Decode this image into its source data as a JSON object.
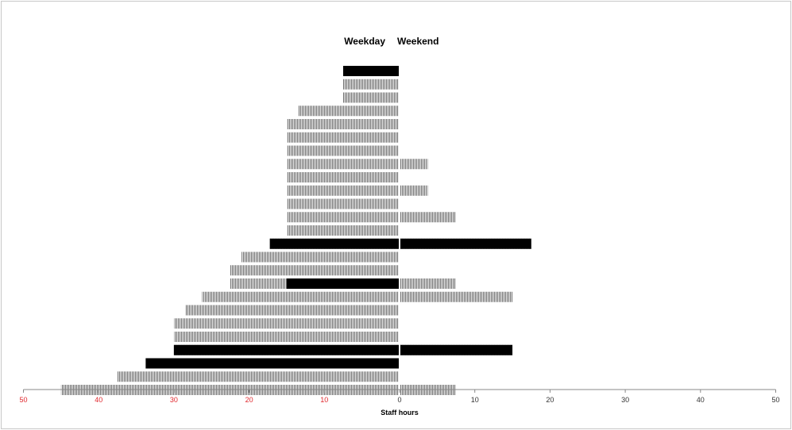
{
  "chart_data": {
    "type": "bar",
    "orientation": "horizontal",
    "layout": "back-to-back",
    "left_header": "Weekday",
    "right_header": "Weekend",
    "xlabel": "Staff hours",
    "xlim": [
      -50,
      50
    ],
    "tick_values": [
      -50,
      -40,
      -30,
      -20,
      -10,
      0,
      10,
      20,
      30,
      40,
      50
    ],
    "tick_labels": [
      "50",
      "40",
      "30",
      "20",
      "10",
      "0",
      "10",
      "20",
      "30",
      "40",
      "50"
    ],
    "tick_colors": {
      "left": "#e0282e",
      "right": "#333333"
    },
    "colors": {
      "hatched": "#7a7a7a",
      "solid": "#000000",
      "axis": "#888888"
    },
    "grid": false,
    "legend": "none",
    "rows": [
      {
        "weekday": 7.5,
        "weekend": 0,
        "weekday_solid": 7.5,
        "weekend_solid": 0
      },
      {
        "weekday": 7.5,
        "weekend": 0,
        "weekday_solid": 0,
        "weekend_solid": 0
      },
      {
        "weekday": 7.5,
        "weekend": 0,
        "weekday_solid": 0,
        "weekend_solid": 0
      },
      {
        "weekday": 13.5,
        "weekend": 0,
        "weekday_solid": 0,
        "weekend_solid": 0
      },
      {
        "weekday": 15,
        "weekend": 0,
        "weekday_solid": 0,
        "weekend_solid": 0
      },
      {
        "weekday": 15,
        "weekend": 0,
        "weekday_solid": 0,
        "weekend_solid": 0
      },
      {
        "weekday": 15,
        "weekend": 0,
        "weekday_solid": 0,
        "weekend_solid": 0
      },
      {
        "weekday": 15,
        "weekend": 3.75,
        "weekday_solid": 0,
        "weekend_solid": 0
      },
      {
        "weekday": 15,
        "weekend": 0,
        "weekday_solid": 0,
        "weekend_solid": 0
      },
      {
        "weekday": 15,
        "weekend": 3.75,
        "weekday_solid": 0,
        "weekend_solid": 0
      },
      {
        "weekday": 15,
        "weekend": 0,
        "weekday_solid": 0,
        "weekend_solid": 0
      },
      {
        "weekday": 15,
        "weekend": 7.5,
        "weekday_solid": 0,
        "weekend_solid": 0
      },
      {
        "weekday": 15,
        "weekend": 0,
        "weekday_solid": 0,
        "weekend_solid": 0
      },
      {
        "weekday": 17.25,
        "weekend": 17.5,
        "weekday_solid": 17.25,
        "weekend_solid": 17.5
      },
      {
        "weekday": 21,
        "weekend": 0,
        "weekday_solid": 0,
        "weekend_solid": 0
      },
      {
        "weekday": 22.5,
        "weekend": 0,
        "weekday_solid": 0,
        "weekend_solid": 0
      },
      {
        "weekday": 22.5,
        "weekend": 7.5,
        "weekday_solid": 15,
        "weekend_solid": 0
      },
      {
        "weekday": 26.25,
        "weekend": 15,
        "weekday_solid": 0,
        "weekend_solid": 0
      },
      {
        "weekday": 28.5,
        "weekend": 0,
        "weekday_solid": 0,
        "weekend_solid": 0
      },
      {
        "weekday": 30,
        "weekend": 0,
        "weekday_solid": 0,
        "weekend_solid": 0
      },
      {
        "weekday": 30,
        "weekend": 0,
        "weekday_solid": 0,
        "weekend_solid": 0
      },
      {
        "weekday": 30,
        "weekend": 15,
        "weekday_solid": 30,
        "weekend_solid": 15
      },
      {
        "weekday": 33.75,
        "weekend": 0,
        "weekday_solid": 33.75,
        "weekend_solid": 0
      },
      {
        "weekday": 37.5,
        "weekend": 0,
        "weekday_solid": 0,
        "weekend_solid": 0
      },
      {
        "weekday": 45,
        "weekend": 7.5,
        "weekday_solid": 0,
        "weekend_solid": 0
      }
    ]
  }
}
